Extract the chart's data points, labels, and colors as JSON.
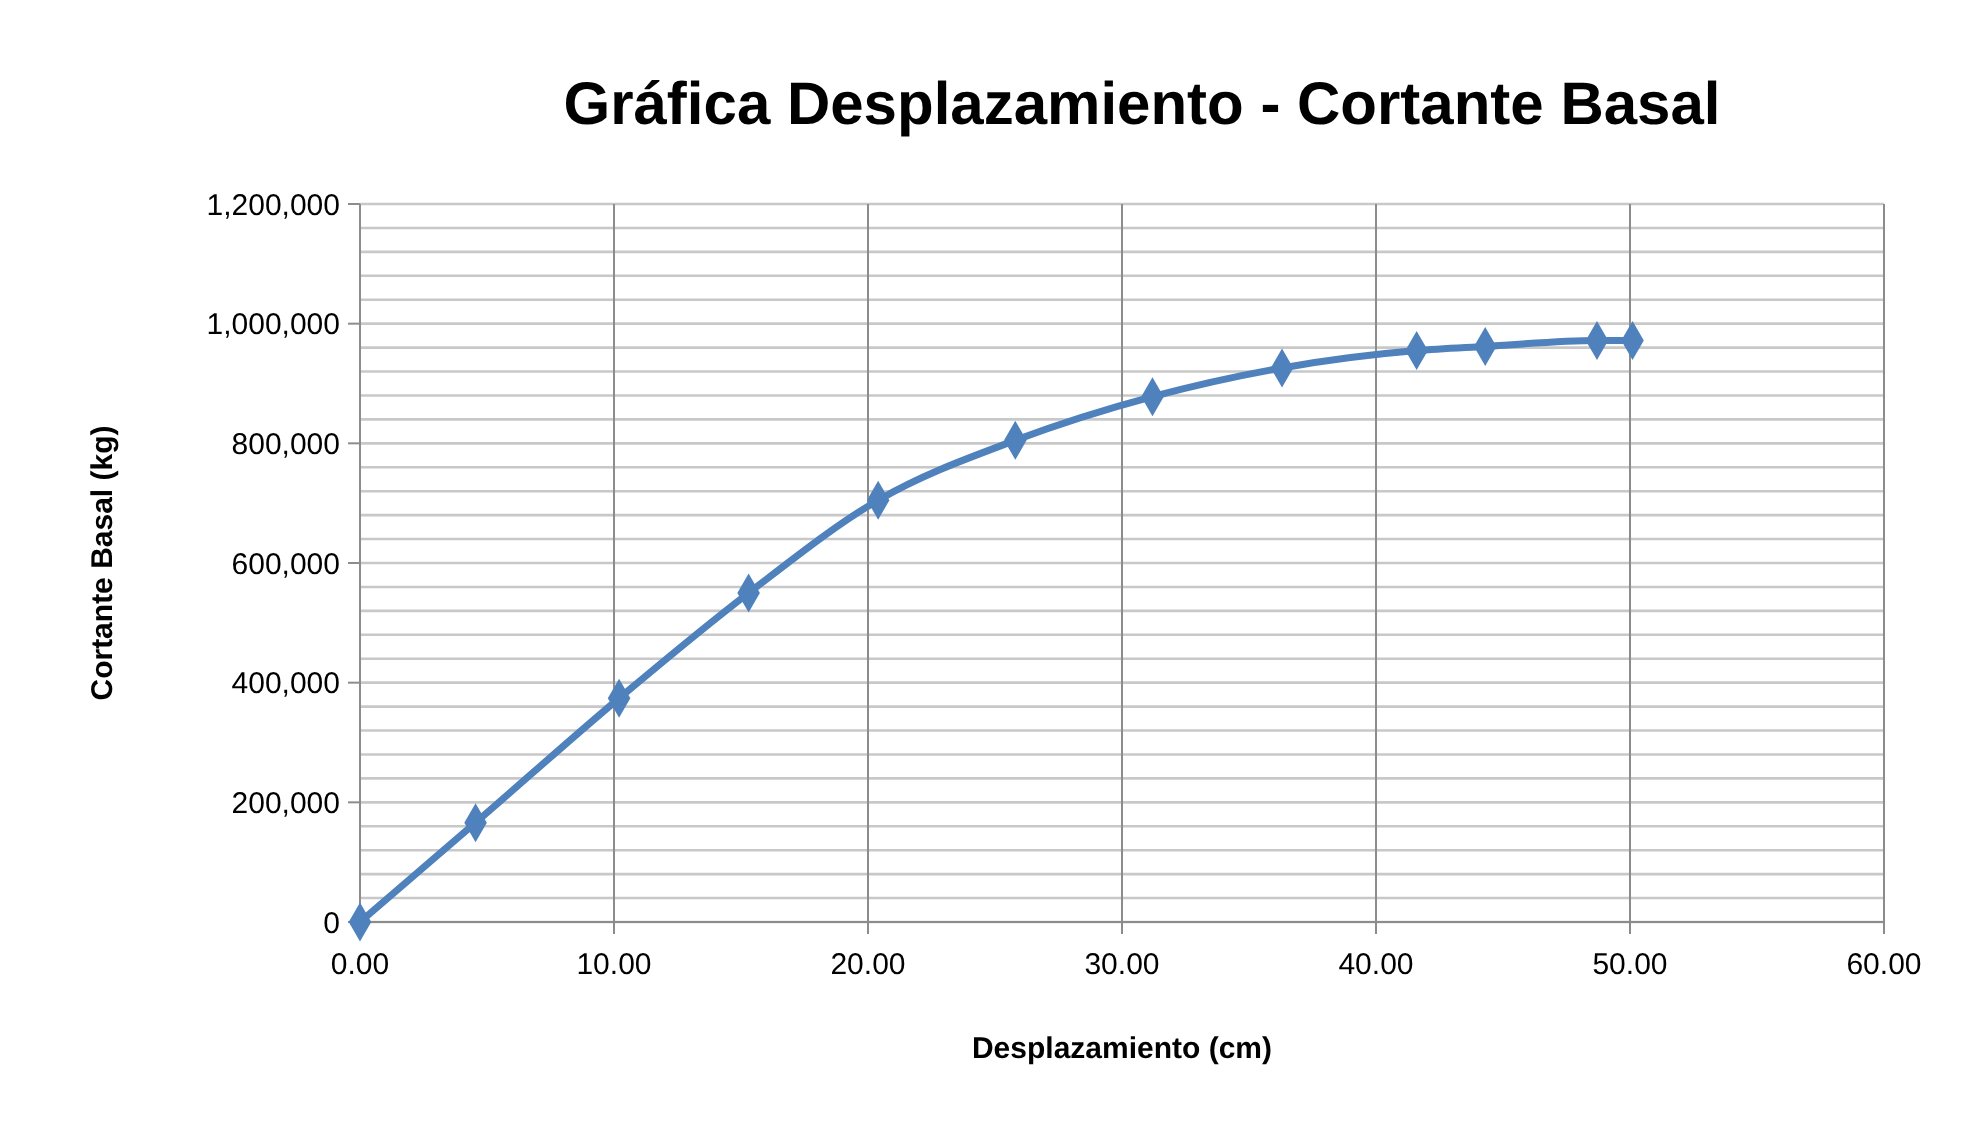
{
  "chart_data": {
    "type": "line",
    "title": "Gráfica Desplazamiento - Cortante Basal",
    "xlabel": "Desplazamiento (cm)",
    "ylabel": "Cortante Basal (kg)",
    "x": [
      0,
      4.55,
      10.2,
      15.3,
      20.4,
      25.8,
      31.2,
      36.3,
      41.6,
      44.3,
      48.7,
      50.1
    ],
    "series": [
      {
        "color": "#4f81bd",
        "values": [
          0,
          166000,
          374000,
          550000,
          705000,
          805000,
          878000,
          926000,
          955000,
          962000,
          972000,
          972000
        ]
      }
    ],
    "xlim": [
      0,
      60
    ],
    "xticks": [
      {
        "value": 0,
        "label": "0.00"
      },
      {
        "value": 10,
        "label": "10.00"
      },
      {
        "value": 20,
        "label": "20.00"
      },
      {
        "value": 30,
        "label": "30.00"
      },
      {
        "value": 40,
        "label": "40.00"
      },
      {
        "value": 50,
        "label": "50.00"
      },
      {
        "value": 60,
        "label": "60.00"
      }
    ],
    "ylim": [
      0,
      1200000
    ],
    "yticks": [
      0,
      {
        "value": 40000,
        "label": null
      },
      {
        "value": 80000,
        "label": null
      },
      {
        "value": 120000,
        "label": null
      },
      {
        "value": 160000,
        "label": null
      },
      {
        "value": 200000,
        "label": "200,000"
      },
      {
        "value": 240000,
        "label": null
      },
      {
        "value": 280000,
        "label": null
      },
      {
        "value": 320000,
        "label": null
      },
      {
        "value": 360000,
        "label": null
      },
      {
        "value": 400000,
        "label": "400,000"
      },
      {
        "value": 440000,
        "label": null
      },
      {
        "value": 480000,
        "label": null
      },
      {
        "value": 520000,
        "label": null
      },
      {
        "value": 560000,
        "label": null
      },
      {
        "value": 600000,
        "label": "600,000"
      },
      {
        "value": 640000,
        "label": null
      },
      {
        "value": 680000,
        "label": null
      },
      {
        "value": 720000,
        "label": null
      },
      {
        "value": 760000,
        "label": null
      },
      {
        "value": 800000,
        "label": "800,000"
      },
      {
        "value": 840000,
        "label": null
      },
      {
        "value": 880000,
        "label": null
      },
      {
        "value": 920000,
        "label": null
      },
      {
        "value": 960000,
        "label": null
      },
      {
        "value": 1000000,
        "label": "1,000,000"
      },
      {
        "value": 1040000,
        "label": null
      },
      {
        "value": 1080000,
        "label": null
      },
      {
        "value": 1120000,
        "label": null
      },
      {
        "value": 1160000,
        "label": null
      },
      {
        "value": 1200000,
        "label": "1,200,000"
      }
    ],
    "grid": true,
    "marker": "diamond",
    "line_style": "solid"
  }
}
